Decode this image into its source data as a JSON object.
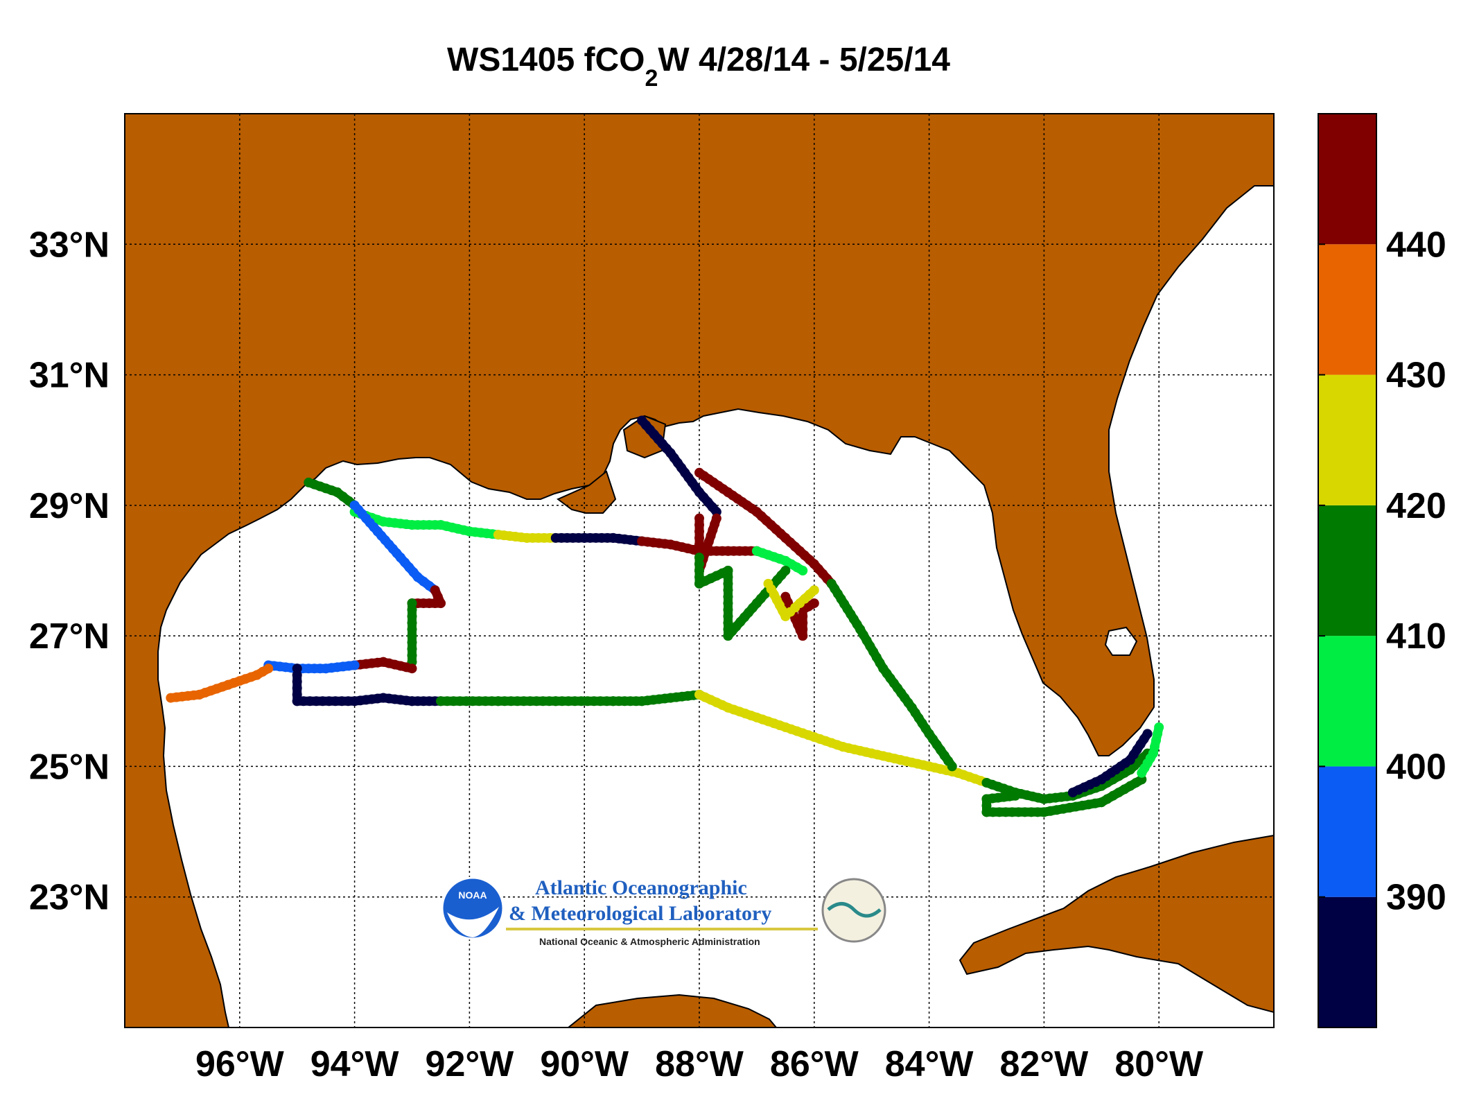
{
  "title": {
    "prefix": "WS1405 fCO",
    "subscript": "2",
    "suffix": "W 4/28/14 - 5/25/14"
  },
  "colors": {
    "land": "#b85d00",
    "ocean": "#ffffff",
    "grid": "#000000"
  },
  "chart_data": {
    "type": "map",
    "projection": "equirectangular",
    "lon_range": [
      -98,
      -78
    ],
    "lat_range": [
      21,
      35
    ],
    "grid": true,
    "x_ticks": [
      {
        "value": -96,
        "label": "96°W"
      },
      {
        "value": -94,
        "label": "94°W"
      },
      {
        "value": -92,
        "label": "92°W"
      },
      {
        "value": -90,
        "label": "90°W"
      },
      {
        "value": -88,
        "label": "88°W"
      },
      {
        "value": -86,
        "label": "86°W"
      },
      {
        "value": -84,
        "label": "84°W"
      },
      {
        "value": -82,
        "label": "82°W"
      },
      {
        "value": -80,
        "label": "80°W"
      }
    ],
    "y_ticks": [
      {
        "value": 33,
        "label": "33°N"
      },
      {
        "value": 31,
        "label": "31°N"
      },
      {
        "value": 29,
        "label": "29°N"
      },
      {
        "value": 27,
        "label": "27°N"
      },
      {
        "value": 25,
        "label": "25°N"
      },
      {
        "value": 23,
        "label": "23°N"
      }
    ],
    "colorbar": {
      "range": [
        380,
        450
      ],
      "colors": [
        "#000044",
        "#0a5cf5",
        "#00ee44",
        "#007a00",
        "#d8d800",
        "#e86400",
        "#800000"
      ],
      "tick_values": [
        390,
        400,
        410,
        420,
        430,
        440
      ],
      "tick_labels": [
        "390",
        "400",
        "410",
        "420",
        "430",
        "440"
      ]
    },
    "track_segments": [
      {
        "lon": [
          -94.8,
          -94.3,
          -94.0
        ],
        "lat": [
          29.35,
          29.2,
          29.0
        ],
        "fco2": 415
      },
      {
        "lon": [
          -94.0,
          -93.5,
          -93.0,
          -92.5,
          -92.0,
          -91.5
        ],
        "lat": [
          28.9,
          28.75,
          28.7,
          28.7,
          28.6,
          28.55
        ],
        "fco2": 405
      },
      {
        "lon": [
          -91.5,
          -91.0,
          -90.5
        ],
        "lat": [
          28.55,
          28.5,
          28.5
        ],
        "fco2": 425
      },
      {
        "lon": [
          -90.5,
          -90.0,
          -89.5,
          -89.0
        ],
        "lat": [
          28.5,
          28.5,
          28.5,
          28.45
        ],
        "fco2": 385
      },
      {
        "lon": [
          -89.0,
          -88.5,
          -88.0,
          -87.5,
          -87.0
        ],
        "lat": [
          28.45,
          28.4,
          28.3,
          28.3,
          28.3
        ],
        "fco2": 445
      },
      {
        "lon": [
          -87.0,
          -86.5,
          -86.2
        ],
        "lat": [
          28.3,
          28.15,
          28.0
        ],
        "fco2": 405
      },
      {
        "lon": [
          -94.0,
          -93.6,
          -93.2,
          -92.9,
          -92.6
        ],
        "lat": [
          29.0,
          28.6,
          28.2,
          27.9,
          27.7
        ],
        "fco2": 395
      },
      {
        "lon": [
          -92.6,
          -92.5,
          -93.0
        ],
        "lat": [
          27.7,
          27.5,
          27.5
        ],
        "fco2": 445
      },
      {
        "lon": [
          -93.0,
          -93.0
        ],
        "lat": [
          27.5,
          26.6
        ],
        "fco2": 415
      },
      {
        "lon": [
          -93.0,
          -93.5,
          -94.0
        ],
        "lat": [
          26.5,
          26.6,
          26.55
        ],
        "fco2": 445
      },
      {
        "lon": [
          -94.0,
          -94.5,
          -95.0,
          -95.5
        ],
        "lat": [
          26.55,
          26.5,
          26.5,
          26.55
        ],
        "fco2": 395
      },
      {
        "lon": [
          -95.0,
          -95.0,
          -94.0,
          -93.5,
          -93.0,
          -92.5
        ],
        "lat": [
          26.5,
          26.0,
          26.0,
          26.05,
          26.0,
          26.0
        ],
        "fco2": 385
      },
      {
        "lon": [
          -92.5,
          -91.5,
          -90.5,
          -89.5,
          -89.0,
          -88.5,
          -88.0
        ],
        "lat": [
          26.0,
          26.0,
          26.0,
          26.0,
          26.0,
          26.05,
          26.1
        ],
        "fco2": 412
      },
      {
        "lon": [
          -88.0,
          -87.5,
          -87.0,
          -86.5,
          -86.0,
          -85.5,
          -85.0
        ],
        "lat": [
          26.1,
          25.9,
          25.75,
          25.6,
          25.45,
          25.3,
          25.2
        ],
        "fco2": 420
      },
      {
        "lon": [
          -85.0,
          -84.5,
          -84.0,
          -83.5,
          -83.0
        ],
        "lat": [
          25.2,
          25.1,
          25.0,
          24.9,
          24.75
        ],
        "fco2": 428
      },
      {
        "lon": [
          -83.0,
          -82.5,
          -82.0,
          -81.5,
          -81.0,
          -80.5,
          -80.2
        ],
        "lat": [
          24.75,
          24.6,
          24.5,
          24.55,
          24.7,
          24.95,
          25.2
        ],
        "fco2": 418
      },
      {
        "lon": [
          -97.2,
          -96.7,
          -96.2,
          -95.7,
          -95.5
        ],
        "lat": [
          26.05,
          26.1,
          26.25,
          26.4,
          26.5
        ],
        "fco2": 430
      },
      {
        "lon": [
          -89.0,
          -88.5,
          -88.0,
          -87.7
        ],
        "lat": [
          30.3,
          29.8,
          29.2,
          28.9
        ],
        "fco2": 385
      },
      {
        "lon": [
          -88.0,
          -87.5,
          -87.0,
          -86.5,
          -86.0,
          -85.7
        ],
        "lat": [
          29.5,
          29.2,
          28.9,
          28.5,
          28.1,
          27.8
        ],
        "fco2": 440
      },
      {
        "lon": [
          -85.7,
          -85.2,
          -84.8,
          -84.3,
          -84.0,
          -83.6
        ],
        "lat": [
          27.8,
          27.1,
          26.5,
          25.9,
          25.5,
          25.0
        ],
        "fco2": 410
      },
      {
        "lon": [
          -88.0,
          -88.0,
          -87.7
        ],
        "lat": [
          28.8,
          28.0,
          28.8
        ],
        "fco2": 445
      },
      {
        "lon": [
          -88.0,
          -88.0,
          -87.5
        ],
        "lat": [
          28.2,
          27.8,
          28.0
        ],
        "fco2": 415
      },
      {
        "lon": [
          -87.5,
          -87.5,
          -87.0,
          -86.5
        ],
        "lat": [
          28.0,
          27.0,
          27.5,
          28.0
        ],
        "fco2": 412
      },
      {
        "lon": [
          -86.5,
          -86.2,
          -86.2,
          -86.0
        ],
        "lat": [
          27.6,
          27.0,
          27.4,
          27.5
        ],
        "fco2": 445
      },
      {
        "lon": [
          -86.8,
          -86.5,
          -86.0
        ],
        "lat": [
          27.8,
          27.3,
          27.7
        ],
        "fco2": 428
      },
      {
        "lon": [
          -82.5,
          -83.0,
          -83.0,
          -82.0,
          -81.0,
          -80.3
        ],
        "lat": [
          24.55,
          24.5,
          24.3,
          24.3,
          24.45,
          24.8
        ],
        "fco2": 412
      },
      {
        "lon": [
          -81.5,
          -81.0,
          -80.5,
          -80.2
        ],
        "lat": [
          24.6,
          24.8,
          25.1,
          25.5
        ],
        "fco2": 385
      },
      {
        "lon": [
          -80.0,
          -80.1,
          -80.3
        ],
        "lat": [
          25.6,
          25.2,
          24.9
        ],
        "fco2": 405
      }
    ]
  },
  "logo": {
    "emblem": "NOAA",
    "line1": "Atlantic Oceanographic",
    "line2": "& Meteorological Laboratory",
    "line3": "National Oceanic & Atmospheric Administration"
  }
}
